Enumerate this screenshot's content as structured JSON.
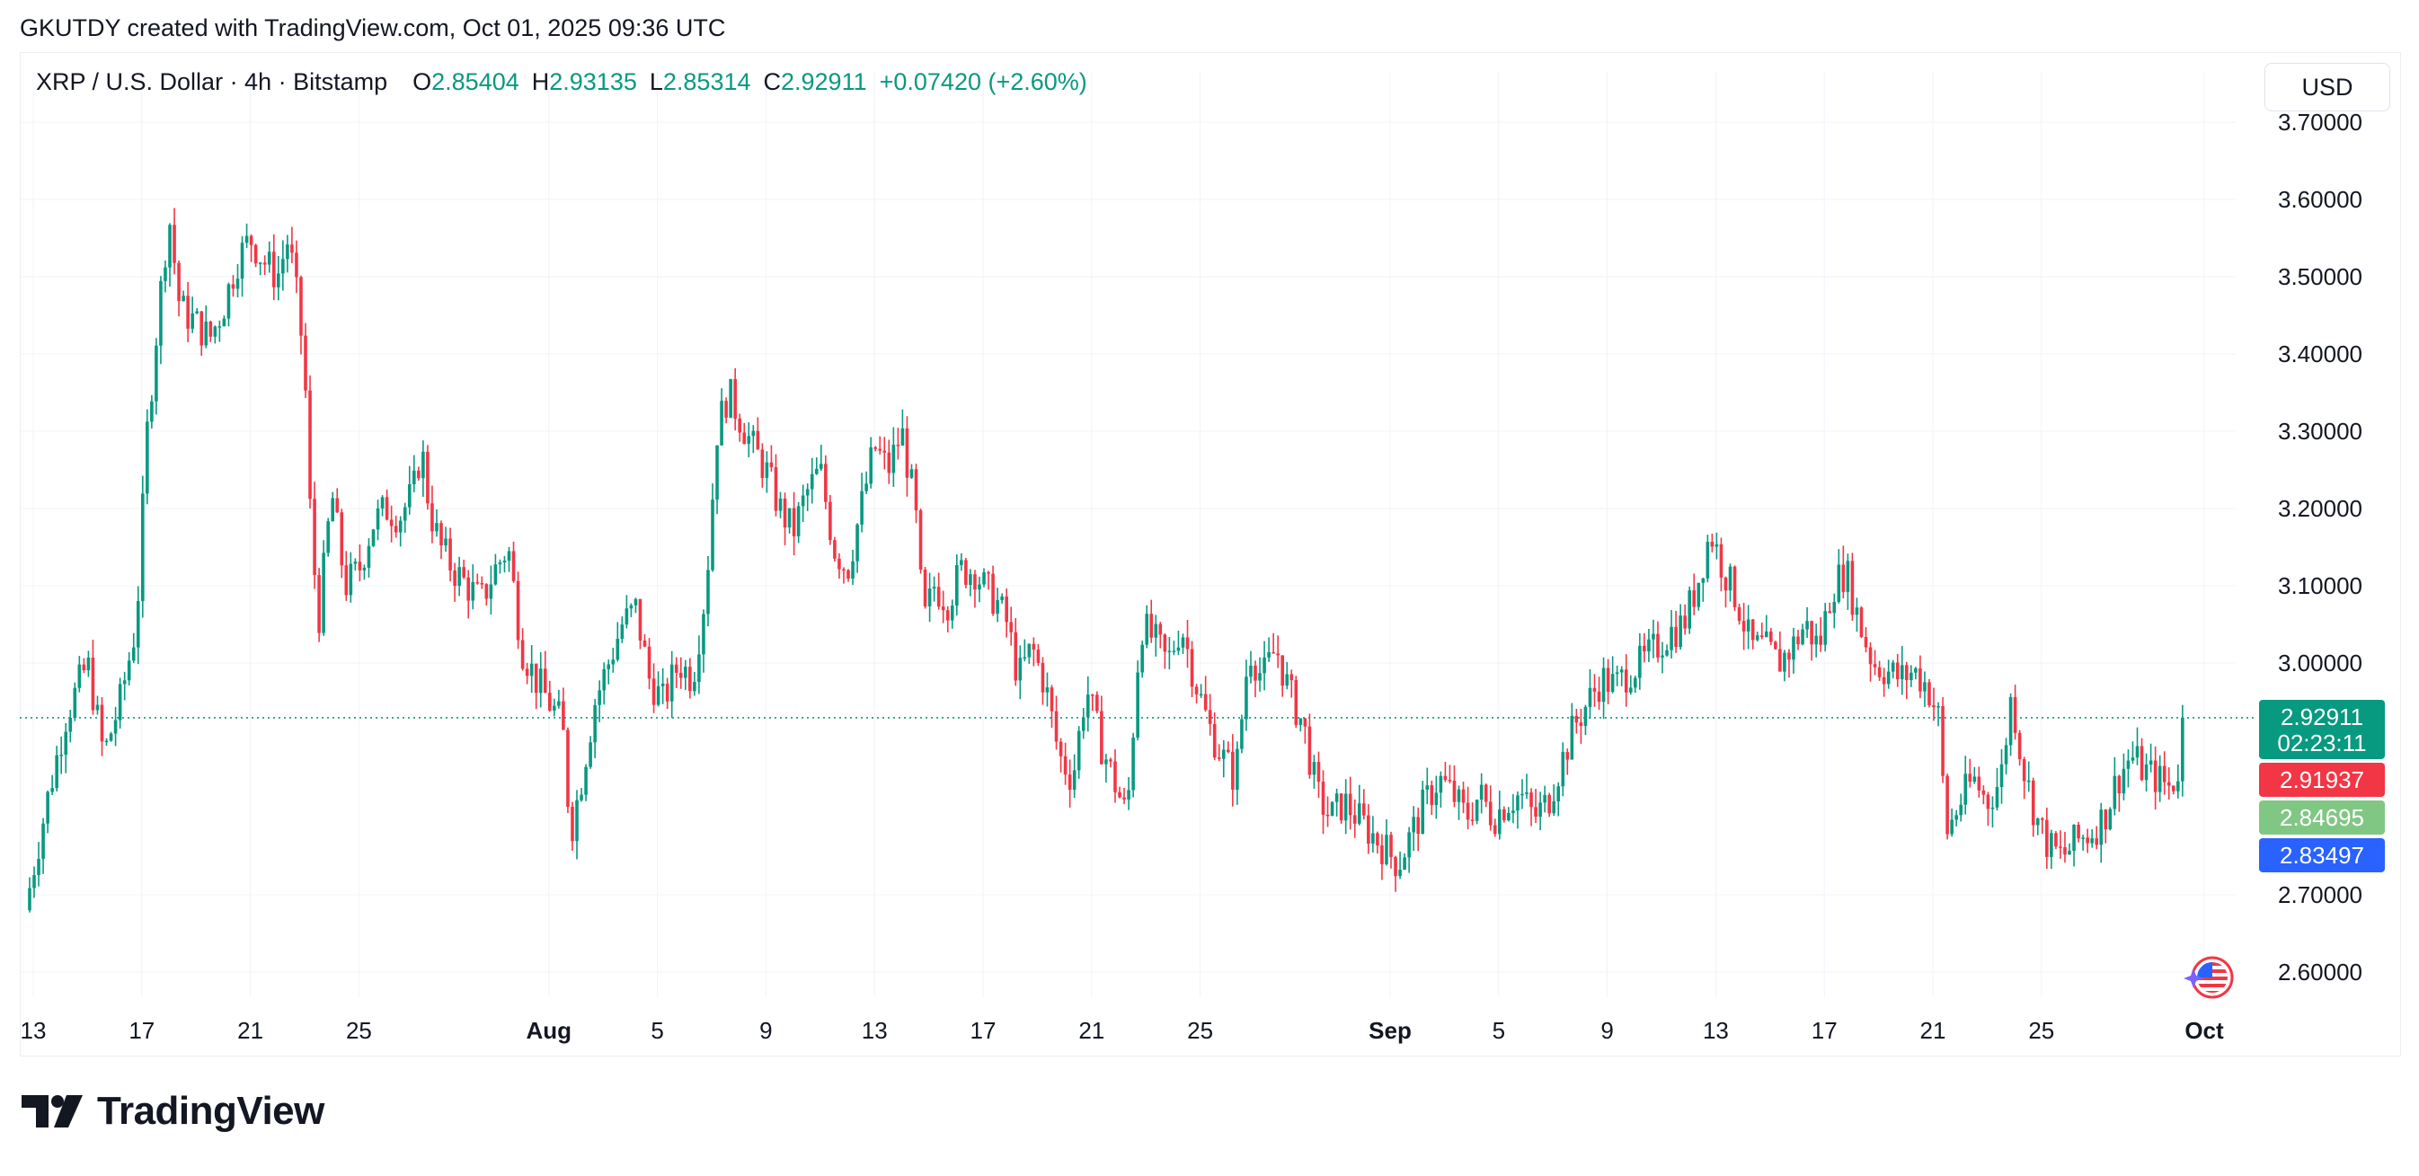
{
  "header": {
    "attribution": "GKUTDY created with TradingView.com, Oct 01, 2025 09:36 UTC"
  },
  "legend": {
    "symbol": "XRP / U.S. Dollar · 4h · Bitstamp",
    "open_label": "O",
    "open": "2.85404",
    "high_label": "H",
    "high": "2.93135",
    "low_label": "L",
    "low": "2.85314",
    "close_label": "C",
    "close": "2.92911",
    "change": "+0.07420 (+2.60%)"
  },
  "currency_button": {
    "label": "USD"
  },
  "colors": {
    "up": "#089981",
    "down": "#f23645",
    "grid": "#f0f3fa",
    "text": "#131722"
  },
  "price_tags": [
    {
      "label": "2.92911",
      "sub": "02:23:11",
      "value": 2.92911,
      "color": "#089981"
    },
    {
      "label": "2.91937",
      "value": 2.91937,
      "color": "#f23645"
    },
    {
      "label": "2.84695",
      "value": 2.84695,
      "color": "#81c784",
      "text_color": "#131722"
    },
    {
      "label": "2.83497",
      "value": 2.83497,
      "color": "#2962ff"
    }
  ],
  "chart_data": {
    "type": "candlestick",
    "title": "XRP / U.S. Dollar · 4h · Bitstamp",
    "interval": "4h",
    "x_start_day": 12.7,
    "x_end_day": 92.2,
    "ylim": [
      2.56,
      3.73
    ],
    "y_ticks": [
      "2.60000",
      "2.70000",
      "3.00000",
      "3.10000",
      "3.20000",
      "3.30000",
      "3.40000",
      "3.50000",
      "3.60000",
      "3.70000"
    ],
    "x_ticks": [
      {
        "label": "13",
        "day": 13
      },
      {
        "label": "17",
        "day": 17
      },
      {
        "label": "21",
        "day": 21
      },
      {
        "label": "25",
        "day": 25
      },
      {
        "label": "Aug",
        "day": 32,
        "bold": true
      },
      {
        "label": "5",
        "day": 36
      },
      {
        "label": "9",
        "day": 40
      },
      {
        "label": "13",
        "day": 44
      },
      {
        "label": "17",
        "day": 48
      },
      {
        "label": "21",
        "day": 52
      },
      {
        "label": "25",
        "day": 56
      },
      {
        "label": "Sep",
        "day": 63,
        "bold": true
      },
      {
        "label": "5",
        "day": 67
      },
      {
        "label": "9",
        "day": 71
      },
      {
        "label": "13",
        "day": 75
      },
      {
        "label": "17",
        "day": 79
      },
      {
        "label": "21",
        "day": 83
      },
      {
        "label": "25",
        "day": 87
      },
      {
        "label": "Oct",
        "day": 93,
        "bold": true
      }
    ],
    "last_price": 2.92911,
    "anchors": [
      [
        12.7,
        2.68
      ],
      [
        13.5,
        2.82
      ],
      [
        14.2,
        2.93
      ],
      [
        15.0,
        3.0
      ],
      [
        15.6,
        2.88
      ],
      [
        16.2,
        2.95
      ],
      [
        16.8,
        3.05
      ],
      [
        17.2,
        3.3
      ],
      [
        17.6,
        3.45
      ],
      [
        18.0,
        3.58
      ],
      [
        18.4,
        3.46
      ],
      [
        19.0,
        3.44
      ],
      [
        19.5,
        3.42
      ],
      [
        20.0,
        3.46
      ],
      [
        20.5,
        3.52
      ],
      [
        21.0,
        3.55
      ],
      [
        21.5,
        3.52
      ],
      [
        22.0,
        3.5
      ],
      [
        22.4,
        3.55
      ],
      [
        22.8,
        3.45
      ],
      [
        23.0,
        3.38
      ],
      [
        23.2,
        3.2
      ],
      [
        23.5,
        3.05
      ],
      [
        24.0,
        3.22
      ],
      [
        24.5,
        3.1
      ],
      [
        25.0,
        3.12
      ],
      [
        25.5,
        3.18
      ],
      [
        26.0,
        3.2
      ],
      [
        26.5,
        3.19
      ],
      [
        27.0,
        3.22
      ],
      [
        27.3,
        3.28
      ],
      [
        27.6,
        3.2
      ],
      [
        28.0,
        3.15
      ],
      [
        28.5,
        3.12
      ],
      [
        29.0,
        3.1
      ],
      [
        29.5,
        3.08
      ],
      [
        30.0,
        3.12
      ],
      [
        30.5,
        3.15
      ],
      [
        31.0,
        3.02
      ],
      [
        31.5,
        2.98
      ],
      [
        32.0,
        2.95
      ],
      [
        32.5,
        2.92
      ],
      [
        32.8,
        2.78
      ],
      [
        33.2,
        2.85
      ],
      [
        33.7,
        2.95
      ],
      [
        34.2,
        3.0
      ],
      [
        34.7,
        3.05
      ],
      [
        35.2,
        3.07
      ],
      [
        35.7,
        2.98
      ],
      [
        36.2,
        2.95
      ],
      [
        36.8,
        3.0
      ],
      [
        37.3,
        2.98
      ],
      [
        37.8,
        3.1
      ],
      [
        38.2,
        3.3
      ],
      [
        38.6,
        3.35
      ],
      [
        39.0,
        3.32
      ],
      [
        39.5,
        3.28
      ],
      [
        40.0,
        3.25
      ],
      [
        40.5,
        3.2
      ],
      [
        41.0,
        3.17
      ],
      [
        41.5,
        3.22
      ],
      [
        42.0,
        3.25
      ],
      [
        42.5,
        3.15
      ],
      [
        43.0,
        3.12
      ],
      [
        43.5,
        3.2
      ],
      [
        44.0,
        3.28
      ],
      [
        44.5,
        3.25
      ],
      [
        45.0,
        3.3
      ],
      [
        45.5,
        3.2
      ],
      [
        45.8,
        3.05
      ],
      [
        46.2,
        3.1
      ],
      [
        46.7,
        3.08
      ],
      [
        47.2,
        3.12
      ],
      [
        47.7,
        3.12
      ],
      [
        48.0,
        3.1
      ],
      [
        48.5,
        3.08
      ],
      [
        48.9,
        3.05
      ],
      [
        49.3,
        2.98
      ],
      [
        49.8,
        3.02
      ],
      [
        50.3,
        2.97
      ],
      [
        50.8,
        2.88
      ],
      [
        51.3,
        2.85
      ],
      [
        51.8,
        2.97
      ],
      [
        52.3,
        2.9
      ],
      [
        52.8,
        2.85
      ],
      [
        53.3,
        2.8
      ],
      [
        53.8,
        3.05
      ],
      [
        54.3,
        3.03
      ],
      [
        54.8,
        3.0
      ],
      [
        55.3,
        3.05
      ],
      [
        55.8,
        2.98
      ],
      [
        56.3,
        2.92
      ],
      [
        56.8,
        2.88
      ],
      [
        57.3,
        2.85
      ],
      [
        57.8,
        3.02
      ],
      [
        58.3,
        2.98
      ],
      [
        58.8,
        3.02
      ],
      [
        59.3,
        2.96
      ],
      [
        59.8,
        2.92
      ],
      [
        60.3,
        2.83
      ],
      [
        60.8,
        2.8
      ],
      [
        61.3,
        2.82
      ],
      [
        61.8,
        2.8
      ],
      [
        62.3,
        2.78
      ],
      [
        62.8,
        2.76
      ],
      [
        63.3,
        2.74
      ],
      [
        63.8,
        2.78
      ],
      [
        64.3,
        2.82
      ],
      [
        64.8,
        2.85
      ],
      [
        65.3,
        2.83
      ],
      [
        65.8,
        2.8
      ],
      [
        66.3,
        2.83
      ],
      [
        66.8,
        2.8
      ],
      [
        67.3,
        2.82
      ],
      [
        67.8,
        2.83
      ],
      [
        68.3,
        2.8
      ],
      [
        68.8,
        2.82
      ],
      [
        69.3,
        2.87
      ],
      [
        69.8,
        2.92
      ],
      [
        70.3,
        2.95
      ],
      [
        70.8,
        2.98
      ],
      [
        71.3,
        2.97
      ],
      [
        71.8,
        2.99
      ],
      [
        72.3,
        3.0
      ],
      [
        72.8,
        3.02
      ],
      [
        73.3,
        3.04
      ],
      [
        73.8,
        3.05
      ],
      [
        74.3,
        3.1
      ],
      [
        74.8,
        3.17
      ],
      [
        75.3,
        3.12
      ],
      [
        75.8,
        3.08
      ],
      [
        76.3,
        3.02
      ],
      [
        76.8,
        3.02
      ],
      [
        77.3,
        3.0
      ],
      [
        77.8,
        3.02
      ],
      [
        78.3,
        3.05
      ],
      [
        78.8,
        3.02
      ],
      [
        79.3,
        3.1
      ],
      [
        79.8,
        3.12
      ],
      [
        80.3,
        3.05
      ],
      [
        80.8,
        3.0
      ],
      [
        81.3,
        2.99
      ],
      [
        81.8,
        2.98
      ],
      [
        82.3,
        2.99
      ],
      [
        82.8,
        2.97
      ],
      [
        83.2,
        2.93
      ],
      [
        83.5,
        2.78
      ],
      [
        84.0,
        2.82
      ],
      [
        84.5,
        2.85
      ],
      [
        85.0,
        2.82
      ],
      [
        85.5,
        2.85
      ],
      [
        85.9,
        2.96
      ],
      [
        86.3,
        2.87
      ],
      [
        86.8,
        2.8
      ],
      [
        87.3,
        2.76
      ],
      [
        87.8,
        2.75
      ],
      [
        88.3,
        2.77
      ],
      [
        88.8,
        2.78
      ],
      [
        89.3,
        2.8
      ],
      [
        89.8,
        2.85
      ],
      [
        90.3,
        2.88
      ],
      [
        90.8,
        2.86
      ],
      [
        91.3,
        2.85
      ],
      [
        91.7,
        2.84
      ],
      [
        92.0,
        2.85
      ],
      [
        92.2,
        2.929
      ]
    ]
  },
  "footer": {
    "brand": "TradingView"
  }
}
